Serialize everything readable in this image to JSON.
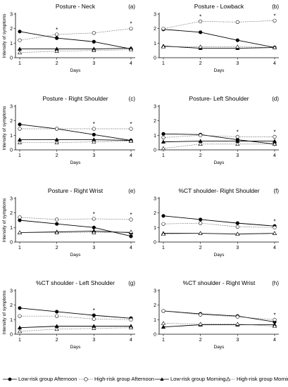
{
  "series_styles": [
    {
      "key": "low_pm",
      "marker": "circle",
      "filled": true,
      "dash": "solid",
      "color": "#000000"
    },
    {
      "key": "high_pm",
      "marker": "circle",
      "filled": false,
      "dash": "dotted",
      "color": "#555555"
    },
    {
      "key": "low_am",
      "marker": "triangle",
      "filled": true,
      "dash": "solid",
      "color": "#000000"
    },
    {
      "key": "high_am",
      "marker": "triangle",
      "filled": false,
      "dash": "dotted",
      "color": "#555555"
    }
  ],
  "legend": {
    "items": [
      "Low-risk group Afternoon",
      "High-risk group Afternoon",
      "Low-risk group Morning",
      "High-risk group Morning"
    ]
  },
  "chart_data": [
    {
      "type": "line",
      "title": "Posture - Neck",
      "panel_label": "(a)",
      "xlabel": "Days",
      "ylabel": "Intensity of symptoms",
      "x": [
        1,
        2,
        3,
        4
      ],
      "ylim": [
        0,
        3
      ],
      "yticks": [
        0,
        1,
        2,
        3
      ],
      "series": [
        {
          "name": "Low-risk group Afternoon",
          "values": [
            1.8,
            1.35,
            1.1,
            0.6
          ]
        },
        {
          "name": "High-risk group Afternoon",
          "values": [
            1.2,
            1.6,
            1.7,
            2.0
          ]
        },
        {
          "name": "Low-risk group Morning",
          "values": [
            0.6,
            0.6,
            0.6,
            0.65
          ]
        },
        {
          "name": "High-risk group Morning",
          "values": [
            0.35,
            0.45,
            0.5,
            0.55
          ]
        }
      ],
      "significance": [
        2,
        4
      ]
    },
    {
      "type": "line",
      "title": "Posture - Lowback",
      "panel_label": "(b)",
      "xlabel": "Days",
      "ylabel": "",
      "x": [
        1,
        2,
        3,
        4
      ],
      "ylim": [
        0,
        3
      ],
      "yticks": [
        0,
        1,
        2,
        3
      ],
      "series": [
        {
          "name": "Low-risk group Afternoon",
          "values": [
            1.95,
            1.75,
            1.2,
            0.7
          ]
        },
        {
          "name": "High-risk group Afternoon",
          "values": [
            2.0,
            2.5,
            2.45,
            2.55
          ]
        },
        {
          "name": "Low-risk group Morning",
          "values": [
            0.8,
            0.65,
            0.65,
            0.7
          ]
        },
        {
          "name": "High-risk group Morning",
          "values": [
            0.75,
            0.75,
            0.75,
            0.7
          ]
        }
      ],
      "significance": [
        2,
        4
      ]
    },
    {
      "type": "line",
      "title": "Posture - Right Shoulder",
      "panel_label": "(c)",
      "xlabel": "Days",
      "ylabel": "Intensity of symptoms",
      "x": [
        1,
        2,
        3,
        4
      ],
      "ylim": [
        0,
        3
      ],
      "yticks": [
        0,
        1,
        2,
        3
      ],
      "series": [
        {
          "name": "Low-risk group Afternoon",
          "values": [
            1.75,
            1.45,
            1.05,
            0.65
          ]
        },
        {
          "name": "High-risk group Afternoon",
          "values": [
            1.45,
            1.45,
            1.45,
            1.45
          ]
        },
        {
          "name": "Low-risk group Morning",
          "values": [
            0.7,
            0.7,
            0.7,
            0.65
          ]
        },
        {
          "name": "High-risk group Morning",
          "values": [
            0.5,
            0.5,
            0.55,
            0.6
          ]
        }
      ],
      "significance": [
        3,
        4
      ]
    },
    {
      "type": "line",
      "title": "Posture- Left Shoulder",
      "panel_label": "(d)",
      "xlabel": "Days",
      "ylabel": "",
      "x": [
        1,
        2,
        3,
        4
      ],
      "ylim": [
        0,
        3
      ],
      "yticks": [
        0,
        1,
        2,
        3
      ],
      "series": [
        {
          "name": "Low-risk group Afternoon",
          "values": [
            1.1,
            1.05,
            0.7,
            0.4
          ]
        },
        {
          "name": "High-risk group Afternoon",
          "values": [
            0.85,
            1.0,
            0.9,
            0.9
          ]
        },
        {
          "name": "Low-risk group Morning",
          "values": [
            0.55,
            0.6,
            0.6,
            0.6
          ]
        },
        {
          "name": "High-risk group Morning",
          "values": [
            0.1,
            0.4,
            0.4,
            0.4
          ]
        }
      ],
      "significance": [
        3,
        4
      ]
    },
    {
      "type": "line",
      "title": "Posture - Right Wrist",
      "panel_label": "(e)",
      "xlabel": "Days",
      "ylabel": "Intensity of symptoms",
      "x": [
        1,
        2,
        3,
        4
      ],
      "ylim": [
        0,
        3
      ],
      "yticks": [
        0,
        1,
        2,
        3
      ],
      "series": [
        {
          "name": "Low-risk group Afternoon",
          "values": [
            1.5,
            1.25,
            1.0,
            0.4
          ]
        },
        {
          "name": "High-risk group Afternoon",
          "values": [
            1.7,
            1.55,
            1.6,
            1.55
          ]
        },
        {
          "name": "Low-risk group Morning",
          "values": [
            0.65,
            0.7,
            0.75,
            0.65
          ]
        },
        {
          "name": "High-risk group Morning",
          "values": [
            0.65,
            0.65,
            0.65,
            0.7
          ]
        }
      ],
      "significance": [
        3,
        4
      ]
    },
    {
      "type": "line",
      "title": "%CT shoulder- Right Shoulder",
      "panel_label": "(f)",
      "xlabel": "Days",
      "ylabel": "",
      "x": [
        1,
        2,
        3,
        4
      ],
      "ylim": [
        0,
        3
      ],
      "yticks": [
        0,
        1,
        2,
        3
      ],
      "series": [
        {
          "name": "Low-risk group Afternoon",
          "values": [
            1.8,
            1.55,
            1.3,
            1.1
          ]
        },
        {
          "name": "High-risk group Afternoon",
          "values": [
            1.25,
            1.3,
            1.05,
            1.0
          ]
        },
        {
          "name": "Low-risk group Morning",
          "values": [
            0.6,
            0.6,
            0.55,
            0.6
          ]
        },
        {
          "name": "High-risk group Morning",
          "values": [
            0.55,
            0.6,
            0.55,
            0.6
          ]
        }
      ],
      "significance": [
        4
      ]
    },
    {
      "type": "line",
      "title": "%CT shoulder - Left Shoulder",
      "panel_label": "(g)",
      "xlabel": "Days",
      "ylabel": "Intensity of symptoms",
      "x": [
        1,
        2,
        3,
        4
      ],
      "ylim": [
        0,
        3
      ],
      "yticks": [
        0,
        1,
        2,
        3
      ],
      "series": [
        {
          "name": "Low-risk group Afternoon",
          "values": [
            1.8,
            1.55,
            1.3,
            1.1
          ]
        },
        {
          "name": "High-risk group Afternoon",
          "values": [
            1.25,
            1.25,
            1.05,
            1.0
          ]
        },
        {
          "name": "Low-risk group Morning",
          "values": [
            0.45,
            0.55,
            0.55,
            0.55
          ]
        },
        {
          "name": "High-risk group Morning",
          "values": [
            0.2,
            0.35,
            0.4,
            0.45
          ]
        }
      ],
      "significance": [
        3
      ]
    },
    {
      "type": "line",
      "title": "%CT shoulder - Right Wrist",
      "panel_label": "(h)",
      "xlabel": "Days",
      "ylabel": "",
      "x": [
        1,
        2,
        3,
        4
      ],
      "ylim": [
        0,
        3
      ],
      "yticks": [
        0,
        1,
        2,
        3
      ],
      "series": [
        {
          "name": "Low-risk group Afternoon",
          "values": [
            1.6,
            1.4,
            1.25,
            0.85
          ]
        },
        {
          "name": "High-risk group Afternoon",
          "values": [
            1.6,
            1.35,
            1.2,
            1.0
          ]
        },
        {
          "name": "Low-risk group Morning",
          "values": [
            0.5,
            0.65,
            0.65,
            0.65
          ]
        },
        {
          "name": "High-risk group Morning",
          "values": [
            0.75,
            0.7,
            0.7,
            0.55
          ]
        }
      ],
      "significance": [
        4
      ]
    }
  ]
}
